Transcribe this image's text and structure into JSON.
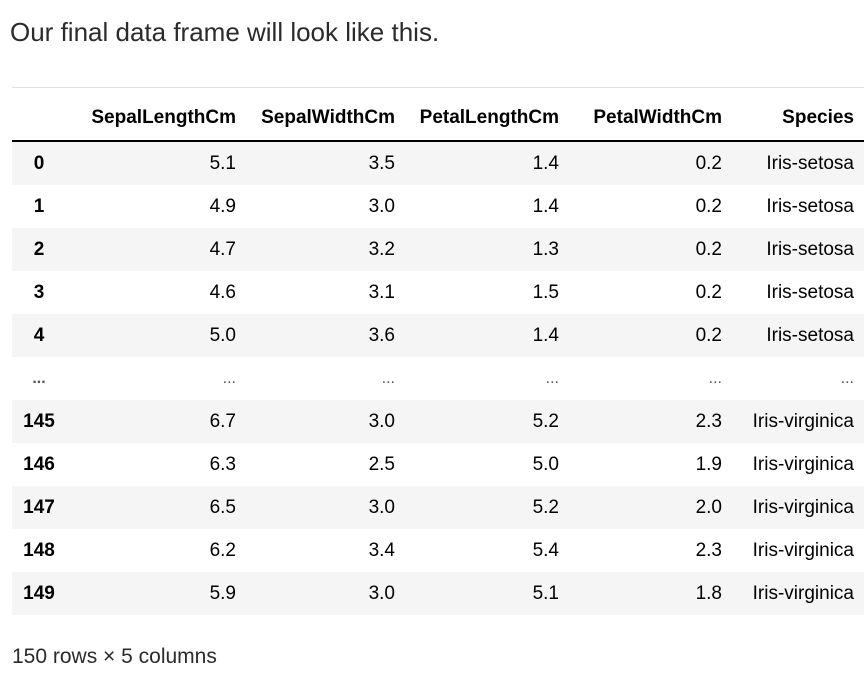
{
  "intro_text": "Our final data frame will look like this.",
  "table": {
    "index_header": "",
    "columns": [
      "SepalLengthCm",
      "SepalWidthCm",
      "PetalLengthCm",
      "PetalWidthCm",
      "Species"
    ],
    "rows": [
      {
        "index": "0",
        "cells": [
          "5.1",
          "3.5",
          "1.4",
          "0.2",
          "Iris-setosa"
        ]
      },
      {
        "index": "1",
        "cells": [
          "4.9",
          "3.0",
          "1.4",
          "0.2",
          "Iris-setosa"
        ]
      },
      {
        "index": "2",
        "cells": [
          "4.7",
          "3.2",
          "1.3",
          "0.2",
          "Iris-setosa"
        ]
      },
      {
        "index": "3",
        "cells": [
          "4.6",
          "3.1",
          "1.5",
          "0.2",
          "Iris-setosa"
        ]
      },
      {
        "index": "4",
        "cells": [
          "5.0",
          "3.6",
          "1.4",
          "0.2",
          "Iris-setosa"
        ]
      },
      {
        "index": "...",
        "cells": [
          "...",
          "...",
          "...",
          "...",
          "..."
        ]
      },
      {
        "index": "145",
        "cells": [
          "6.7",
          "3.0",
          "5.2",
          "2.3",
          "Iris-virginica"
        ]
      },
      {
        "index": "146",
        "cells": [
          "6.3",
          "2.5",
          "5.0",
          "1.9",
          "Iris-virginica"
        ]
      },
      {
        "index": "147",
        "cells": [
          "6.5",
          "3.0",
          "5.2",
          "2.0",
          "Iris-virginica"
        ]
      },
      {
        "index": "148",
        "cells": [
          "6.2",
          "3.4",
          "5.4",
          "2.3",
          "Iris-virginica"
        ]
      },
      {
        "index": "149",
        "cells": [
          "5.9",
          "3.0",
          "5.1",
          "1.8",
          "Iris-virginica"
        ]
      }
    ]
  },
  "footer_text": "150 rows × 5 columns",
  "colors": {
    "stripe": "#f5f5f5",
    "header_rule": "#000000",
    "text": "#2b2b2b"
  }
}
